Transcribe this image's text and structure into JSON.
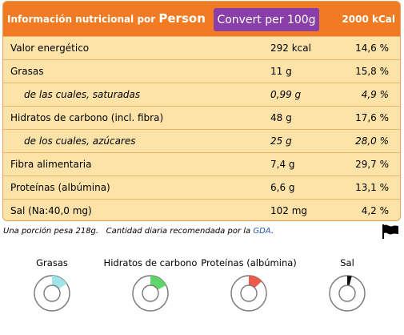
{
  "header": {
    "title_prefix": "Información nutricional por",
    "title_unit": "Person",
    "convert_button": "Convert per 100g",
    "kcal_reference": "2000 kCal",
    "background": "#f07b22",
    "button_color": "#8a3fa8"
  },
  "rows": [
    {
      "label": "Valor energético",
      "amount": "292 kcal",
      "percent": "14,6 %"
    },
    {
      "label": "Grasas",
      "amount": "11 g",
      "percent": "15,8 %"
    },
    {
      "label": "de las cuales, saturadas",
      "amount": "0,99 g",
      "percent": "4,9 %"
    },
    {
      "label": "Hidratos de carbono (incl. fibra)",
      "amount": "48 g",
      "percent": "17,6 %"
    },
    {
      "label": "de los cuales, azúcares",
      "amount": "25 g",
      "percent": "28,0 %"
    },
    {
      "label": "Fibra alimentaria",
      "amount": "7,4 g",
      "percent": "29,7 %"
    },
    {
      "label": "Proteínas (albúmina)",
      "amount": "6,6 g",
      "percent": "13,1 %"
    },
    {
      "label": "Sal (Na:40,0 mg)",
      "amount": "102 mg",
      "percent": "4,2 %"
    }
  ],
  "footnote": {
    "portion": "Una porción pesa 218g.",
    "gda_text": "Cantidad diaria recomendada por la",
    "gda_link": "GDA",
    "end": ".",
    "flag_icon": "black-flag-icon"
  },
  "gauges": [
    {
      "label": "Grasas",
      "fraction": 0.158,
      "color": "#9fe4ea"
    },
    {
      "label": "Hidratos de carbono",
      "fraction": 0.176,
      "color": "#5fd56a"
    },
    {
      "label": "Proteínas (albúmina)",
      "fraction": 0.131,
      "color": "#ee5a4a"
    },
    {
      "label": "Sal",
      "fraction": 0.042,
      "color": "#111111"
    }
  ]
}
